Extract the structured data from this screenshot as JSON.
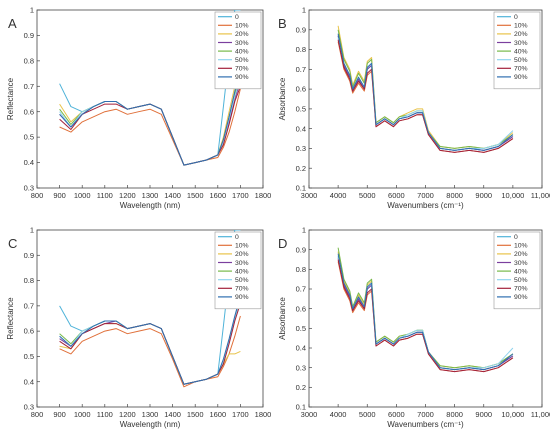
{
  "chart_data": [
    {
      "panel_label": "A",
      "type": "line",
      "xlabel": "Wavelength (nm)",
      "ylabel": "Reflectance",
      "xlim": [
        800,
        1800
      ],
      "ylim": [
        0.3,
        1.0
      ],
      "xticks": [
        800,
        900,
        1000,
        1100,
        1200,
        1300,
        1400,
        1500,
        1600,
        1700,
        1800
      ],
      "yticks": [
        0.3,
        0.4,
        0.5,
        0.6,
        0.7,
        0.8,
        0.9,
        1.0
      ],
      "xtick_labels": [
        "800",
        "900",
        "1000",
        "1100",
        "1200",
        "1300",
        "1400",
        "1500",
        "1600",
        "1700",
        "1800"
      ],
      "ytick_labels": [
        "0.3",
        "0.4",
        "0.5",
        "0.6",
        "0.7",
        "0.8",
        "0.9",
        "1"
      ],
      "grid": false,
      "legend_position": "top-right",
      "x": [
        900,
        950,
        1000,
        1050,
        1100,
        1150,
        1200,
        1250,
        1300,
        1350,
        1400,
        1450,
        1500,
        1550,
        1600,
        1625,
        1650,
        1675,
        1700
      ],
      "series": [
        {
          "name": "0",
          "values": [
            0.71,
            0.62,
            0.6,
            0.62,
            0.64,
            0.64,
            0.61,
            0.62,
            0.63,
            0.61,
            0.5,
            0.39,
            0.4,
            0.41,
            0.43,
            0.62,
            0.82,
            1.0,
            1.0
          ]
        },
        {
          "name": "10%",
          "values": [
            0.54,
            0.52,
            0.56,
            0.58,
            0.6,
            0.61,
            0.59,
            0.6,
            0.61,
            0.59,
            0.49,
            0.39,
            0.4,
            0.41,
            0.42,
            0.46,
            0.52,
            0.6,
            0.69
          ]
        },
        {
          "name": "20%",
          "values": [
            0.63,
            0.56,
            0.6,
            0.62,
            0.64,
            0.64,
            0.61,
            0.62,
            0.63,
            0.61,
            0.5,
            0.39,
            0.4,
            0.41,
            0.43,
            0.5,
            0.6,
            0.7,
            0.77
          ]
        },
        {
          "name": "30%",
          "values": [
            0.59,
            0.54,
            0.59,
            0.62,
            0.64,
            0.64,
            0.61,
            0.62,
            0.63,
            0.61,
            0.5,
            0.39,
            0.4,
            0.41,
            0.43,
            0.48,
            0.56,
            0.65,
            0.72
          ]
        },
        {
          "name": "40%",
          "values": [
            0.61,
            0.55,
            0.6,
            0.62,
            0.64,
            0.64,
            0.61,
            0.62,
            0.63,
            0.61,
            0.5,
            0.39,
            0.4,
            0.41,
            0.43,
            0.49,
            0.58,
            0.67,
            0.74
          ]
        },
        {
          "name": "50%",
          "values": [
            0.6,
            0.54,
            0.6,
            0.62,
            0.64,
            0.64,
            0.61,
            0.62,
            0.63,
            0.61,
            0.5,
            0.39,
            0.4,
            0.41,
            0.43,
            0.48,
            0.57,
            0.66,
            0.73
          ]
        },
        {
          "name": "70%",
          "values": [
            0.57,
            0.53,
            0.59,
            0.61,
            0.63,
            0.63,
            0.61,
            0.62,
            0.63,
            0.61,
            0.5,
            0.39,
            0.4,
            0.41,
            0.43,
            0.47,
            0.55,
            0.64,
            0.7
          ]
        },
        {
          "name": "90%",
          "values": [
            0.59,
            0.54,
            0.59,
            0.62,
            0.64,
            0.64,
            0.61,
            0.62,
            0.63,
            0.61,
            0.5,
            0.39,
            0.4,
            0.41,
            0.43,
            0.49,
            0.58,
            0.68,
            0.76
          ]
        }
      ]
    },
    {
      "panel_label": "B",
      "type": "line",
      "xlabel": "Wavenumbers (cm⁻¹)",
      "ylabel": "Absorbance",
      "xlim": [
        3000,
        11000
      ],
      "ylim": [
        0.1,
        1.0
      ],
      "xticks": [
        3000,
        4000,
        5000,
        6000,
        7000,
        8000,
        9000,
        10000,
        11000
      ],
      "yticks": [
        0.1,
        0.2,
        0.3,
        0.4,
        0.5,
        0.6,
        0.7,
        0.8,
        0.9,
        1.0
      ],
      "xtick_labels": [
        "3000",
        "4000",
        "5000",
        "6000",
        "7000",
        "8000",
        "9000",
        "10,000",
        "11,000"
      ],
      "ytick_labels": [
        "0.1",
        "0.2",
        "0.3",
        "0.4",
        "0.5",
        "0.6",
        "0.7",
        "0.8",
        "0.9",
        "1"
      ],
      "grid": false,
      "legend_position": "top-right",
      "x": [
        4000,
        4200,
        4400,
        4500,
        4700,
        4900,
        5000,
        5150,
        5300,
        5600,
        5900,
        6100,
        6400,
        6700,
        6900,
        7100,
        7500,
        8000,
        8500,
        9000,
        9500,
        10000
      ],
      "series": [
        {
          "name": "0",
          "values": [
            0.87,
            0.72,
            0.66,
            0.59,
            0.65,
            0.6,
            0.7,
            0.72,
            0.42,
            0.45,
            0.42,
            0.45,
            0.46,
            0.48,
            0.48,
            0.38,
            0.3,
            0.29,
            0.3,
            0.29,
            0.31,
            0.36
          ]
        },
        {
          "name": "10%",
          "values": [
            0.84,
            0.7,
            0.64,
            0.58,
            0.63,
            0.59,
            0.67,
            0.69,
            0.41,
            0.44,
            0.41,
            0.44,
            0.45,
            0.47,
            0.47,
            0.37,
            0.29,
            0.28,
            0.29,
            0.28,
            0.3,
            0.35
          ]
        },
        {
          "name": "20%",
          "values": [
            0.92,
            0.76,
            0.7,
            0.62,
            0.69,
            0.64,
            0.74,
            0.76,
            0.43,
            0.46,
            0.43,
            0.46,
            0.48,
            0.5,
            0.5,
            0.39,
            0.31,
            0.3,
            0.31,
            0.3,
            0.32,
            0.38
          ]
        },
        {
          "name": "30%",
          "values": [
            0.87,
            0.72,
            0.66,
            0.59,
            0.65,
            0.6,
            0.7,
            0.72,
            0.42,
            0.45,
            0.42,
            0.45,
            0.46,
            0.48,
            0.48,
            0.38,
            0.3,
            0.29,
            0.3,
            0.29,
            0.31,
            0.36
          ]
        },
        {
          "name": "40%",
          "values": [
            0.9,
            0.75,
            0.69,
            0.61,
            0.68,
            0.63,
            0.73,
            0.75,
            0.43,
            0.46,
            0.43,
            0.46,
            0.47,
            0.49,
            0.49,
            0.38,
            0.31,
            0.3,
            0.31,
            0.3,
            0.32,
            0.37
          ]
        },
        {
          "name": "50%",
          "values": [
            0.86,
            0.73,
            0.67,
            0.6,
            0.66,
            0.61,
            0.71,
            0.73,
            0.42,
            0.45,
            0.42,
            0.45,
            0.47,
            0.49,
            0.49,
            0.38,
            0.3,
            0.29,
            0.3,
            0.3,
            0.32,
            0.39
          ]
        },
        {
          "name": "70%",
          "values": [
            0.85,
            0.71,
            0.65,
            0.59,
            0.64,
            0.6,
            0.68,
            0.7,
            0.41,
            0.44,
            0.41,
            0.44,
            0.45,
            0.47,
            0.47,
            0.37,
            0.29,
            0.28,
            0.29,
            0.28,
            0.3,
            0.35
          ]
        },
        {
          "name": "90%",
          "values": [
            0.88,
            0.73,
            0.67,
            0.6,
            0.66,
            0.61,
            0.71,
            0.73,
            0.42,
            0.45,
            0.42,
            0.45,
            0.46,
            0.48,
            0.48,
            0.38,
            0.3,
            0.29,
            0.3,
            0.29,
            0.31,
            0.37
          ]
        }
      ]
    },
    {
      "panel_label": "C",
      "type": "line",
      "xlabel": "Wavelength (nm)",
      "ylabel": "Reflectance",
      "xlim": [
        800,
        1800
      ],
      "ylim": [
        0.3,
        1.0
      ],
      "xticks": [
        800,
        900,
        1000,
        1100,
        1200,
        1300,
        1400,
        1500,
        1600,
        1700,
        1800
      ],
      "yticks": [
        0.3,
        0.4,
        0.5,
        0.6,
        0.7,
        0.8,
        0.9,
        1.0
      ],
      "xtick_labels": [
        "800",
        "900",
        "1000",
        "1100",
        "1200",
        "1300",
        "1400",
        "1500",
        "1600",
        "1700",
        "1800"
      ],
      "ytick_labels": [
        "0.3",
        "0.4",
        "0.5",
        "0.6",
        "0.7",
        "0.8",
        "0.9",
        "1"
      ],
      "grid": false,
      "legend_position": "top-right",
      "x": [
        900,
        950,
        1000,
        1050,
        1100,
        1150,
        1200,
        1250,
        1300,
        1350,
        1400,
        1450,
        1500,
        1550,
        1600,
        1625,
        1650,
        1675,
        1700
      ],
      "series": [
        {
          "name": "0",
          "values": [
            0.7,
            0.62,
            0.6,
            0.62,
            0.64,
            0.64,
            0.61,
            0.62,
            0.63,
            0.61,
            0.5,
            0.39,
            0.4,
            0.41,
            0.43,
            0.62,
            0.82,
            1.0,
            1.0
          ]
        },
        {
          "name": "10%",
          "values": [
            0.53,
            0.51,
            0.56,
            0.58,
            0.6,
            0.61,
            0.59,
            0.6,
            0.61,
            0.59,
            0.49,
            0.38,
            0.4,
            0.41,
            0.42,
            0.46,
            0.51,
            0.58,
            0.66
          ]
        },
        {
          "name": "20%",
          "values": [
            0.54,
            0.53,
            0.59,
            0.61,
            0.63,
            0.63,
            0.61,
            0.62,
            0.63,
            0.61,
            0.5,
            0.39,
            0.4,
            0.41,
            0.43,
            0.47,
            0.51,
            0.51,
            0.52
          ]
        },
        {
          "name": "30%",
          "values": [
            0.57,
            0.54,
            0.59,
            0.61,
            0.63,
            0.64,
            0.61,
            0.62,
            0.63,
            0.61,
            0.5,
            0.39,
            0.4,
            0.41,
            0.43,
            0.48,
            0.56,
            0.65,
            0.73
          ]
        },
        {
          "name": "40%",
          "values": [
            0.59,
            0.55,
            0.6,
            0.62,
            0.64,
            0.64,
            0.61,
            0.62,
            0.63,
            0.61,
            0.5,
            0.39,
            0.4,
            0.41,
            0.43,
            0.48,
            0.56,
            0.65,
            0.72
          ]
        },
        {
          "name": "50%",
          "values": [
            0.58,
            0.54,
            0.6,
            0.62,
            0.64,
            0.64,
            0.61,
            0.62,
            0.63,
            0.61,
            0.5,
            0.39,
            0.4,
            0.41,
            0.43,
            0.48,
            0.56,
            0.65,
            0.72
          ]
        },
        {
          "name": "70%",
          "values": [
            0.56,
            0.53,
            0.59,
            0.61,
            0.63,
            0.63,
            0.61,
            0.62,
            0.63,
            0.61,
            0.5,
            0.39,
            0.4,
            0.41,
            0.43,
            0.47,
            0.55,
            0.64,
            0.71
          ]
        },
        {
          "name": "90%",
          "values": [
            0.58,
            0.54,
            0.59,
            0.62,
            0.64,
            0.64,
            0.61,
            0.62,
            0.63,
            0.61,
            0.5,
            0.39,
            0.4,
            0.41,
            0.43,
            0.49,
            0.57,
            0.66,
            0.74
          ]
        }
      ]
    },
    {
      "panel_label": "D",
      "type": "line",
      "xlabel": "Wavenumbers (cm⁻¹)",
      "ylabel": "Absorbance",
      "xlim": [
        3000,
        11000
      ],
      "ylim": [
        0.1,
        1.0
      ],
      "xticks": [
        3000,
        4000,
        5000,
        6000,
        7000,
        8000,
        9000,
        10000,
        11000
      ],
      "yticks": [
        0.1,
        0.2,
        0.3,
        0.4,
        0.5,
        0.6,
        0.7,
        0.8,
        0.9,
        1.0
      ],
      "xtick_labels": [
        "3000",
        "4000",
        "5000",
        "6000",
        "7000",
        "8000",
        "9000",
        "10,000",
        "11,000"
      ],
      "ytick_labels": [
        "0.1",
        "0.2",
        "0.3",
        "0.4",
        "0.5",
        "0.6",
        "0.7",
        "0.8",
        "0.9",
        "1"
      ],
      "grid": false,
      "legend_position": "top-right",
      "x": [
        4000,
        4200,
        4400,
        4500,
        4700,
        4900,
        5000,
        5150,
        5300,
        5600,
        5900,
        6100,
        6400,
        6700,
        6900,
        7100,
        7500,
        8000,
        8500,
        9000,
        9500,
        10000
      ],
      "series": [
        {
          "name": "0",
          "values": [
            0.87,
            0.72,
            0.66,
            0.59,
            0.65,
            0.6,
            0.7,
            0.72,
            0.42,
            0.45,
            0.42,
            0.45,
            0.46,
            0.48,
            0.48,
            0.38,
            0.3,
            0.29,
            0.3,
            0.29,
            0.31,
            0.36
          ]
        },
        {
          "name": "10%",
          "values": [
            0.84,
            0.7,
            0.64,
            0.58,
            0.63,
            0.59,
            0.67,
            0.69,
            0.41,
            0.44,
            0.41,
            0.44,
            0.45,
            0.47,
            0.47,
            0.37,
            0.29,
            0.28,
            0.29,
            0.28,
            0.3,
            0.35
          ]
        },
        {
          "name": "20%",
          "values": [
            0.89,
            0.74,
            0.68,
            0.61,
            0.67,
            0.62,
            0.72,
            0.74,
            0.43,
            0.46,
            0.43,
            0.46,
            0.47,
            0.49,
            0.49,
            0.38,
            0.31,
            0.3,
            0.31,
            0.3,
            0.32,
            0.37
          ]
        },
        {
          "name": "30%",
          "values": [
            0.86,
            0.72,
            0.66,
            0.59,
            0.65,
            0.6,
            0.7,
            0.72,
            0.42,
            0.45,
            0.42,
            0.45,
            0.46,
            0.48,
            0.48,
            0.38,
            0.3,
            0.29,
            0.3,
            0.29,
            0.31,
            0.36
          ]
        },
        {
          "name": "40%",
          "values": [
            0.91,
            0.75,
            0.69,
            0.61,
            0.68,
            0.63,
            0.73,
            0.75,
            0.43,
            0.46,
            0.43,
            0.46,
            0.47,
            0.49,
            0.49,
            0.38,
            0.31,
            0.3,
            0.31,
            0.3,
            0.32,
            0.37
          ]
        },
        {
          "name": "50%",
          "values": [
            0.86,
            0.73,
            0.67,
            0.6,
            0.66,
            0.61,
            0.71,
            0.73,
            0.42,
            0.45,
            0.42,
            0.45,
            0.47,
            0.49,
            0.49,
            0.38,
            0.3,
            0.29,
            0.3,
            0.3,
            0.32,
            0.4
          ]
        },
        {
          "name": "70%",
          "values": [
            0.85,
            0.71,
            0.65,
            0.59,
            0.64,
            0.6,
            0.68,
            0.7,
            0.41,
            0.44,
            0.41,
            0.44,
            0.45,
            0.47,
            0.47,
            0.37,
            0.29,
            0.28,
            0.29,
            0.28,
            0.3,
            0.35
          ]
        },
        {
          "name": "90%",
          "values": [
            0.88,
            0.73,
            0.67,
            0.6,
            0.66,
            0.61,
            0.71,
            0.73,
            0.42,
            0.45,
            0.42,
            0.45,
            0.46,
            0.48,
            0.48,
            0.38,
            0.3,
            0.29,
            0.3,
            0.29,
            0.31,
            0.37
          ]
        }
      ]
    }
  ],
  "series_colors": [
    "#4fb3d9",
    "#e0703a",
    "#e8c34a",
    "#7b3f9e",
    "#77b84a",
    "#8fd4ee",
    "#a3213a",
    "#2f6fb0"
  ]
}
